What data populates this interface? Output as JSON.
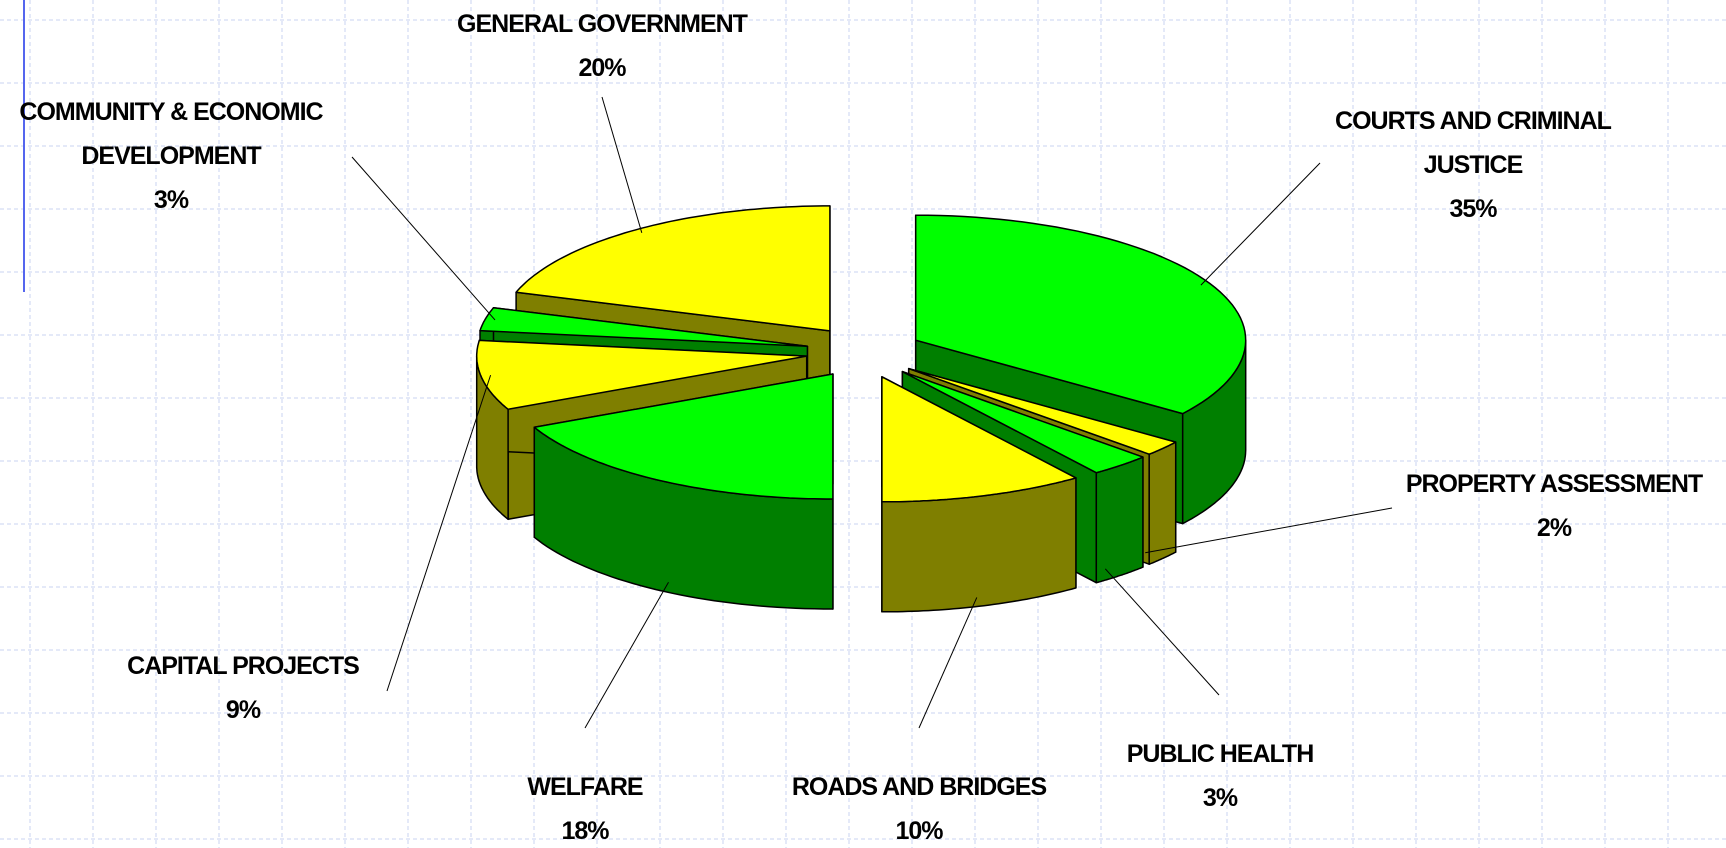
{
  "chart_data": {
    "type": "pie",
    "categories": [
      "COURTS AND CRIMINAL JUSTICE",
      "PROPERTY ASSESSMENT",
      "PUBLIC HEALTH",
      "ROADS AND BRIDGES",
      "WELFARE",
      "CAPITAL PROJECTS",
      "COMMUNITY & ECONOMIC DEVELOPMENT",
      "GENERAL GOVERNMENT"
    ],
    "values": [
      35,
      2,
      3,
      10,
      18,
      9,
      3,
      20
    ],
    "value_labels": [
      "35%",
      "2%",
      "3%",
      "10%",
      "18%",
      "9%",
      "3%",
      "20%"
    ],
    "colors": [
      "#00ff00",
      "#ffff00",
      "#00ff00",
      "#ffff00",
      "#00ff00",
      "#ffff00",
      "#00ff00",
      "#ffff00"
    ]
  }
}
